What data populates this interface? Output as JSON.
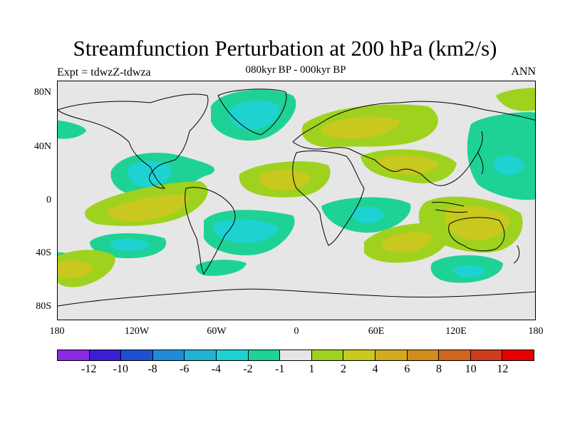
{
  "title": "Streamfunction Perturbation at 200 hPa (km2/s)",
  "subtitle": "080kyr BP - 000kyr BP",
  "left_label": "Expt = tdwzZ-tdwza",
  "right_label": "ANN",
  "lat_labels": [
    "80N",
    "40N",
    "0",
    "40S",
    "80S"
  ],
  "lon_labels": [
    "180",
    "120W",
    "60W",
    "0",
    "60E",
    "120E",
    "180"
  ],
  "colorbar": {
    "colors": [
      "#8a2be2",
      "#3a1fd6",
      "#1e50d2",
      "#1e8cd6",
      "#1eb4d2",
      "#1ed2d2",
      "#1ed296",
      "#e6e6e6",
      "#9ed21e",
      "#c8c81e",
      "#d2aa1e",
      "#d28c1e",
      "#d2641e",
      "#d23c1e",
      "#e60000"
    ],
    "labels": [
      "-12",
      "-10",
      "-8",
      "-6",
      "-4",
      "-2",
      "-1",
      "1",
      "2",
      "4",
      "6",
      "8",
      "10",
      "12"
    ]
  },
  "palette": {
    "neg1": "#1ed296",
    "neg2": "#1ed2d2",
    "pos1": "#9ed21e",
    "pos2": "#c8c81e",
    "background": "#e6e6e6"
  }
}
